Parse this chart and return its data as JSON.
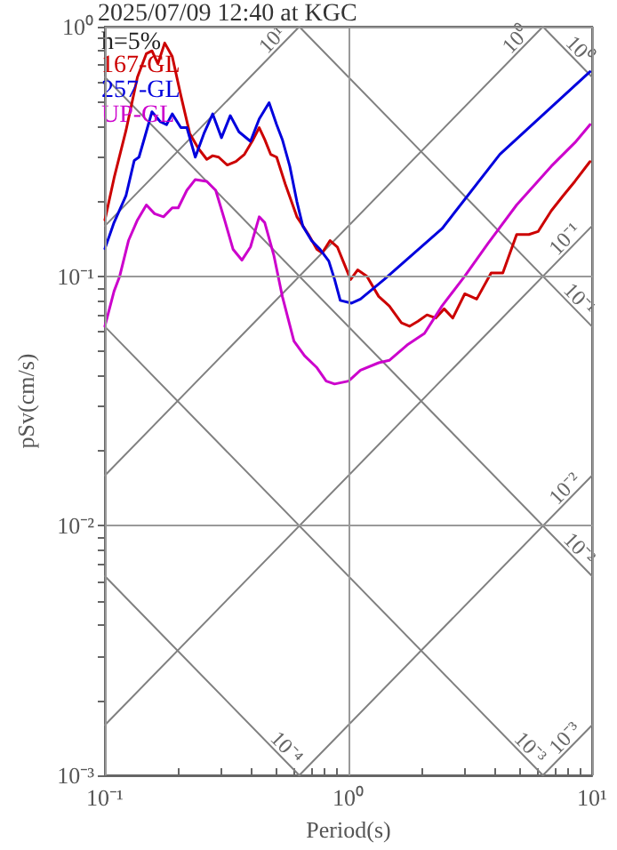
{
  "chart_data": {
    "type": "line",
    "title": "2025/07/09 12:40 at KGC",
    "xlabel": "Period(s)",
    "ylabel": "pSv(cm/s)",
    "log": "xy",
    "grid": true,
    "legend": "top left",
    "marker": "none",
    "line_style": "solid",
    "xlim": [
      0.1,
      10
    ],
    "ylim": [
      0.001,
      1
    ],
    "xticks": [
      {
        "value": 0.1,
        "label": "10⁻¹"
      },
      {
        "value": 0.2,
        "label": null
      },
      {
        "value": 0.3,
        "label": null
      },
      {
        "value": 0.4,
        "label": null
      },
      {
        "value": 0.5,
        "label": null
      },
      {
        "value": 0.6,
        "label": null
      },
      {
        "value": 0.7,
        "label": null
      },
      {
        "value": 0.8,
        "label": null
      },
      {
        "value": 0.9,
        "label": null
      },
      {
        "value": 1,
        "label": "10⁰"
      },
      {
        "value": 2,
        "label": null
      },
      {
        "value": 3,
        "label": null
      },
      {
        "value": 4,
        "label": null
      },
      {
        "value": 5,
        "label": null
      },
      {
        "value": 6,
        "label": null
      },
      {
        "value": 7,
        "label": null
      },
      {
        "value": 8,
        "label": null
      },
      {
        "value": 9,
        "label": null
      },
      {
        "value": 10,
        "label": "10¹"
      }
    ],
    "yticks": [
      {
        "value": 0.001,
        "label": "10⁻³"
      },
      {
        "value": 0.002,
        "label": null
      },
      {
        "value": 0.003,
        "label": null
      },
      {
        "value": 0.004,
        "label": null
      },
      {
        "value": 0.005,
        "label": null
      },
      {
        "value": 0.006,
        "label": null
      },
      {
        "value": 0.007,
        "label": null
      },
      {
        "value": 0.008,
        "label": null
      },
      {
        "value": 0.009,
        "label": null
      },
      {
        "value": 0.01,
        "label": "10⁻²"
      },
      {
        "value": 0.02,
        "label": null
      },
      {
        "value": 0.03,
        "label": null
      },
      {
        "value": 0.04,
        "label": null
      },
      {
        "value": 0.05,
        "label": null
      },
      {
        "value": 0.06,
        "label": null
      },
      {
        "value": 0.07,
        "label": null
      },
      {
        "value": 0.08,
        "label": null
      },
      {
        "value": 0.09,
        "label": null
      },
      {
        "value": 0.1,
        "label": "10⁻¹"
      },
      {
        "value": 0.2,
        "label": null
      },
      {
        "value": 0.3,
        "label": null
      },
      {
        "value": 0.4,
        "label": null
      },
      {
        "value": 0.5,
        "label": null
      },
      {
        "value": 0.6,
        "label": null
      },
      {
        "value": 0.7,
        "label": null
      },
      {
        "value": 0.8,
        "label": null
      },
      {
        "value": 0.9,
        "label": null
      },
      {
        "value": 1,
        "label": "10⁰"
      }
    ],
    "series": [
      {
        "color": "#808080",
        "x": [
          0.1,
          0.628
        ],
        "values": [
          0.159,
          1
        ]
      },
      {
        "color": "#808080",
        "x": [
          0.1,
          6.28
        ],
        "values": [
          0.0159,
          1
        ]
      },
      {
        "color": "#808080",
        "x": [
          0.1,
          10
        ],
        "values": [
          0.00159,
          0.159
        ]
      },
      {
        "color": "#808080",
        "x": [
          0.628,
          10
        ],
        "values": [
          0.001,
          0.0159
        ]
      },
      {
        "color": "#808080",
        "x": [
          6.28,
          10
        ],
        "values": [
          0.001,
          0.00159
        ]
      },
      {
        "color": "#808080",
        "x": [
          6.28,
          10
        ],
        "values": [
          1,
          0.628
        ]
      },
      {
        "color": "#808080",
        "x": [
          0.628,
          10
        ],
        "values": [
          1,
          0.0628
        ]
      },
      {
        "color": "#808080",
        "x": [
          0.1,
          10
        ],
        "values": [
          0.628,
          0.00628
        ]
      },
      {
        "color": "#808080",
        "x": [
          0.1,
          6.28
        ],
        "values": [
          0.0628,
          0.001
        ]
      },
      {
        "color": "#808080",
        "x": [
          0.1,
          0.628
        ],
        "values": [
          0.00628,
          0.001
        ]
      },
      {
        "name": "167-GL",
        "color": "#cc0000",
        "x": [
          0.1,
          0.109,
          0.122,
          0.136,
          0.148,
          0.156,
          0.165,
          0.176,
          0.189,
          0.205,
          0.223,
          0.242,
          0.262,
          0.277,
          0.293,
          0.318,
          0.345,
          0.374,
          0.406,
          0.43,
          0.453,
          0.479,
          0.507,
          0.55,
          0.614,
          0.685,
          0.742,
          0.78,
          0.84,
          0.9,
          0.95,
          1.02,
          1.09,
          1.19,
          1.33,
          1.47,
          1.65,
          1.78,
          1.93,
          2.1,
          2.28,
          2.47,
          2.68,
          3.0,
          3.36,
          3.85,
          4.3,
          4.9,
          5.5,
          6.0,
          6.8,
          7.6,
          8.5,
          9.8
        ],
        "values": [
          0.168,
          0.247,
          0.383,
          0.628,
          0.78,
          0.8,
          0.71,
          0.86,
          0.76,
          0.53,
          0.373,
          0.325,
          0.294,
          0.304,
          0.3,
          0.279,
          0.288,
          0.308,
          0.353,
          0.394,
          0.353,
          0.308,
          0.3,
          0.234,
          0.173,
          0.147,
          0.128,
          0.124,
          0.139,
          0.131,
          0.115,
          0.097,
          0.106,
          0.1,
          0.083,
          0.076,
          0.065,
          0.063,
          0.066,
          0.07,
          0.068,
          0.074,
          0.068,
          0.085,
          0.081,
          0.103,
          0.103,
          0.147,
          0.147,
          0.151,
          0.183,
          0.21,
          0.24,
          0.288
        ]
      },
      {
        "name": "257-GL",
        "color": "#0000dd",
        "x": [
          0.1,
          0.109,
          0.122,
          0.132,
          0.138,
          0.146,
          0.156,
          0.169,
          0.179,
          0.189,
          0.205,
          0.217,
          0.235,
          0.255,
          0.277,
          0.301,
          0.327,
          0.355,
          0.396,
          0.43,
          0.472,
          0.507,
          0.535,
          0.574,
          0.614,
          0.649,
          0.705,
          0.765,
          0.83,
          0.877,
          0.925,
          1.03,
          1.12,
          1.4,
          2.42,
          4.18,
          9.8
        ],
        "values": [
          0.129,
          0.164,
          0.21,
          0.291,
          0.3,
          0.363,
          0.456,
          0.416,
          0.405,
          0.447,
          0.394,
          0.394,
          0.3,
          0.373,
          0.447,
          0.359,
          0.44,
          0.379,
          0.347,
          0.427,
          0.496,
          0.405,
          0.353,
          0.276,
          0.199,
          0.159,
          0.139,
          0.128,
          0.115,
          0.097,
          0.08,
          0.078,
          0.081,
          0.097,
          0.155,
          0.308,
          0.66
        ]
      },
      {
        "name": "UP-GL",
        "color": "#cc00cc",
        "x": [
          0.1,
          0.109,
          0.115,
          0.125,
          0.136,
          0.148,
          0.16,
          0.174,
          0.189,
          0.2,
          0.217,
          0.235,
          0.262,
          0.285,
          0.31,
          0.336,
          0.365,
          0.396,
          0.43,
          0.453,
          0.494,
          0.535,
          0.597,
          0.66,
          0.742,
          0.81,
          0.877,
          1.0,
          1.12,
          1.33,
          1.47,
          1.74,
          2.05,
          2.42,
          3.0,
          3.73,
          4.9,
          6.8,
          8.5,
          9.8
        ],
        "values": [
          0.063,
          0.087,
          0.1,
          0.139,
          0.168,
          0.193,
          0.178,
          0.173,
          0.188,
          0.188,
          0.221,
          0.244,
          0.24,
          0.221,
          0.168,
          0.128,
          0.116,
          0.131,
          0.173,
          0.164,
          0.121,
          0.083,
          0.055,
          0.048,
          0.043,
          0.038,
          0.037,
          0.038,
          0.042,
          0.045,
          0.046,
          0.053,
          0.059,
          0.076,
          0.1,
          0.135,
          0.193,
          0.276,
          0.343,
          0.405
        ]
      }
    ],
    "annotations": [
      "h=5%",
      {
        "text": "10¹",
        "x": 0.628,
        "y": 1
      },
      {
        "text": "10⁰",
        "x": 6.28,
        "y": 1
      },
      {
        "text": "10⁻¹",
        "x": 10,
        "y": 0.159
      },
      {
        "text": "10⁻²",
        "x": 10,
        "y": 0.0159
      },
      {
        "text": "10⁻³",
        "x": 10,
        "y": 0.00159
      },
      {
        "text": "10⁰",
        "x": 10,
        "y": 0.628
      },
      {
        "text": "10⁻¹",
        "x": 10,
        "y": 0.0628
      },
      {
        "text": "10⁻²",
        "x": 10,
        "y": 0.00628
      },
      {
        "text": "10⁻³",
        "x": 6.28,
        "y": 0.001
      },
      {
        "text": "10⁻⁴",
        "x": 0.628,
        "y": 0.001
      }
    ]
  }
}
